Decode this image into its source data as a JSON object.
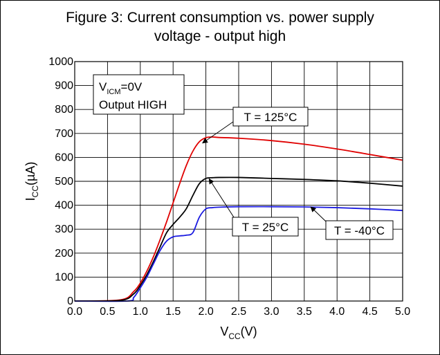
{
  "title_line1": "Figure 3: Current consumption vs. power supply",
  "title_line2": "voltage - output high",
  "chart_data": {
    "type": "line",
    "title": "Figure 3: Current consumption vs. power supply voltage - output high",
    "xlabel": {
      "main": "V",
      "sub": "CC",
      "unit": "(V)"
    },
    "ylabel": {
      "main": "I",
      "sub": "CC",
      "unit": "(µA)"
    },
    "xlim": [
      0,
      5
    ],
    "ylim": [
      0,
      1000
    ],
    "xticks": [
      "0.0",
      "0.5",
      "1.0",
      "1.5",
      "2.0",
      "2.5",
      "3.0",
      "3.5",
      "4.0",
      "4.5",
      "5.0"
    ],
    "yticks": [
      "0",
      "100",
      "200",
      "300",
      "400",
      "500",
      "600",
      "700",
      "800",
      "900",
      "1000"
    ],
    "grid": true,
    "condition_box": {
      "line1_main": "V",
      "line1_sub": "ICM",
      "line1_rest": "=0V",
      "line2": "Output HIGH"
    },
    "series": [
      {
        "name": "T = 125°C",
        "color": "#e00000",
        "x": [
          0.0,
          0.7,
          0.9,
          1.0,
          1.1,
          1.2,
          1.3,
          1.4,
          1.5,
          1.6,
          1.7,
          1.8,
          1.9,
          2.0,
          2.1,
          2.2,
          2.5,
          3.0,
          3.5,
          4.0,
          4.5,
          5.0
        ],
        "y": [
          0,
          5,
          40,
          75,
          125,
          185,
          255,
          330,
          410,
          490,
          565,
          625,
          665,
          682,
          685,
          683,
          680,
          670,
          655,
          635,
          612,
          588
        ]
      },
      {
        "name": "T = 25°C",
        "color": "#000000",
        "x": [
          0.0,
          0.7,
          0.9,
          1.0,
          1.1,
          1.2,
          1.3,
          1.4,
          1.5,
          1.6,
          1.7,
          1.8,
          1.9,
          2.0,
          2.1,
          2.2,
          2.5,
          3.0,
          3.5,
          4.0,
          4.5,
          5.0
        ],
        "y": [
          0,
          3,
          30,
          65,
          110,
          165,
          225,
          285,
          320,
          350,
          385,
          440,
          490,
          512,
          515,
          516,
          516,
          512,
          508,
          502,
          492,
          480
        ]
      },
      {
        "name": "T = -40°C",
        "color": "#1a1ae0",
        "x": [
          0.0,
          0.8,
          0.9,
          1.0,
          1.1,
          1.2,
          1.3,
          1.4,
          1.5,
          1.6,
          1.7,
          1.8,
          1.9,
          2.0,
          2.1,
          2.2,
          2.5,
          3.0,
          3.5,
          4.0,
          4.5,
          5.0
        ],
        "y": [
          0,
          0,
          15,
          55,
          100,
          155,
          210,
          250,
          268,
          272,
          275,
          285,
          350,
          385,
          390,
          392,
          394,
          394,
          393,
          390,
          385,
          378
        ]
      }
    ],
    "annotations": [
      {
        "text": "T = 125°C",
        "series": 0
      },
      {
        "text": "T = 25°C",
        "series": 1
      },
      {
        "text": "T = -40°C",
        "series": 2
      }
    ]
  }
}
